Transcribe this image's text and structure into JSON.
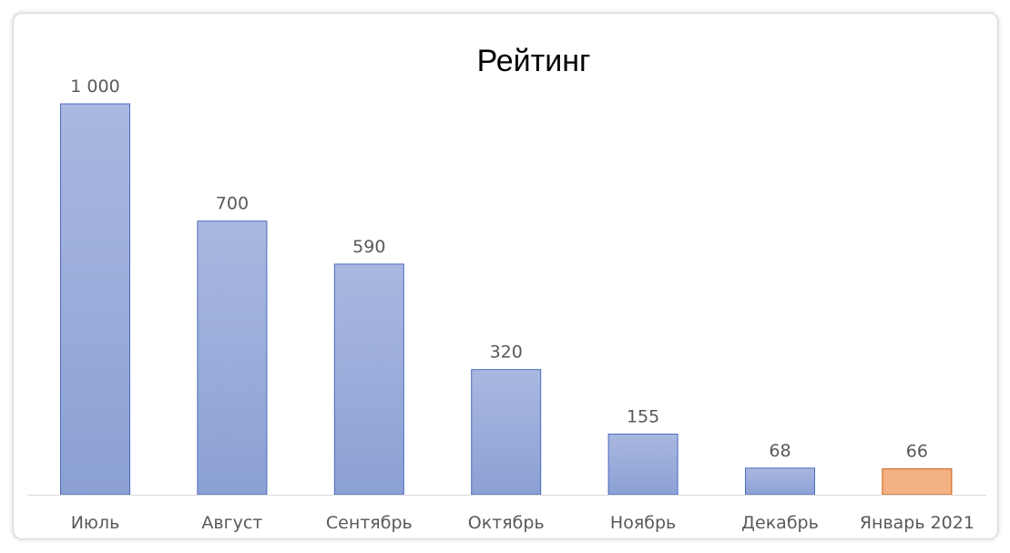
{
  "chart_data": {
    "type": "bar",
    "title": "Рейтинг",
    "categories": [
      "Июль",
      "Август",
      "Сентябрь",
      "Октябрь",
      "Ноябрь",
      "Декабрь",
      "Январь 2021"
    ],
    "values": [
      1000,
      700,
      590,
      320,
      155,
      68,
      66
    ],
    "data_labels": [
      "1 000",
      "700",
      "590",
      "320",
      "155",
      "68",
      "66"
    ],
    "ylim": [
      0,
      1000
    ],
    "grid": false,
    "legend": "none",
    "highlight_index": 6,
    "colors": {
      "bar_top": "#a9b8e0",
      "bar_bottom": "#8ba0d4",
      "bar_border": "#4a6bbf",
      "highlight_fill": "#f4b183",
      "highlight_border": "#c55a11",
      "axis": "#d9d9d9"
    }
  }
}
